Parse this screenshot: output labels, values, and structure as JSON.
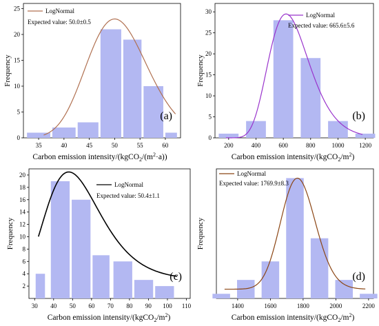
{
  "chart_data": [
    {
      "type": "bar",
      "panel_label": "(a)",
      "legend": "LogNormal",
      "annotation": "Expected value: 50.0±0.5",
      "ylabel": "Frequency",
      "xlabel_parts": [
        "Carbon emission intensity/(kgCO",
        "2",
        "/(m",
        "2",
        "·a))"
      ],
      "xticks": [
        35,
        40,
        45,
        50,
        55,
        60
      ],
      "yticks": [
        0,
        5,
        10,
        15,
        20,
        25
      ],
      "xlim": [
        32,
        63
      ],
      "ylim": [
        0,
        26
      ],
      "bar_centers": [
        35,
        40,
        45,
        50,
        55,
        60
      ],
      "bar_width": 4.3,
      "values": [
        1,
        2,
        3,
        21,
        19,
        10,
        1
      ],
      "bar_centers_full": [
        35,
        40,
        45,
        47.5,
        52.5,
        57.5,
        60
      ],
      "fit_curve": {
        "mode": 50,
        "peak": 23,
        "sigma": 0.12,
        "baseline": 0,
        "x_range": [
          36,
          62
        ]
      },
      "line_color": "#b07050"
    },
    {
      "type": "bar",
      "panel_label": "(b)",
      "legend": "LogNormal",
      "annotation": "Expected value: 665.6±5.6",
      "ylabel": "Frequency",
      "xlabel_parts": [
        "Carbon emission intensity/(kgCO",
        "2",
        "/m",
        "2",
        ")"
      ],
      "xticks": [
        200,
        400,
        600,
        800,
        1000,
        1200
      ],
      "yticks": [
        0,
        5,
        10,
        15,
        20,
        25,
        30
      ],
      "xlim": [
        100,
        1260
      ],
      "ylim": [
        0,
        32
      ],
      "bar_centers_full": [
        200,
        400,
        600,
        800,
        1000,
        1200
      ],
      "bar_width": 160,
      "values": [
        1,
        4,
        28,
        19,
        4,
        1
      ],
      "fit_curve": {
        "mode": 620,
        "peak": 29.5,
        "sigma": 0.24,
        "baseline": 0,
        "x_range": [
          180,
          1180
        ]
      },
      "line_color": "#9933cc"
    },
    {
      "type": "bar",
      "panel_label": "(c)",
      "legend": "LogNormal",
      "annotation": "Expected value: 50.4±1.1",
      "ylabel": "Frequency",
      "xlabel_parts": [
        "Carbon emission intensity/(kgCO",
        "2",
        "/m",
        "2",
        ")"
      ],
      "xticks": [
        30,
        40,
        50,
        60,
        70,
        80,
        90,
        100,
        110
      ],
      "yticks": [
        2,
        4,
        6,
        8,
        10,
        12,
        14,
        16,
        18,
        20
      ],
      "xlim": [
        27,
        112
      ],
      "ylim": [
        0,
        21
      ],
      "bar_centers_full": [
        33,
        44,
        55,
        66,
        77,
        88,
        99,
        110
      ],
      "bar_width": 9,
      "values": [
        4,
        19,
        16,
        7,
        6,
        3,
        2
      ],
      "bar_centers_c": [
        32.5,
        43.5,
        54.5,
        65.5,
        76.5,
        87.5,
        98.5
      ],
      "bar_centers_used": [
        32.5,
        43.5,
        54.5,
        65.5,
        76.5,
        87.5,
        103
      ],
      "fit_curve": {
        "mode": 48,
        "peak": 20.5,
        "sigma": 0.3,
        "baseline": 3,
        "x_range": [
          32,
          105
        ]
      },
      "line_color": "#000000"
    },
    {
      "type": "bar",
      "panel_label": "(d)",
      "legend": "LogNormal",
      "annotation": "Expected value: 1769.9±8.3",
      "ylabel": "Frequency",
      "xlabel_parts": [
        "Carbon emission intensity/(kgCO",
        "2",
        "/m",
        "2",
        ")"
      ],
      "xticks": [
        1400,
        1600,
        1800,
        2000,
        2200
      ],
      "yticks": [],
      "xlim": [
        1270,
        2230
      ],
      "ylim": [
        0,
        28
      ],
      "bar_centers_full": [
        1300,
        1450,
        1600,
        1750,
        1900,
        2050,
        2200
      ],
      "bar_width": 120,
      "values": [
        1,
        4,
        8,
        26,
        13,
        4,
        1
      ],
      "fit_curve": {
        "mode": 1765,
        "peak": 26,
        "sigma": 0.06,
        "baseline": 2,
        "x_range": [
          1320,
          2180
        ]
      },
      "line_color": "#8b4513"
    }
  ]
}
